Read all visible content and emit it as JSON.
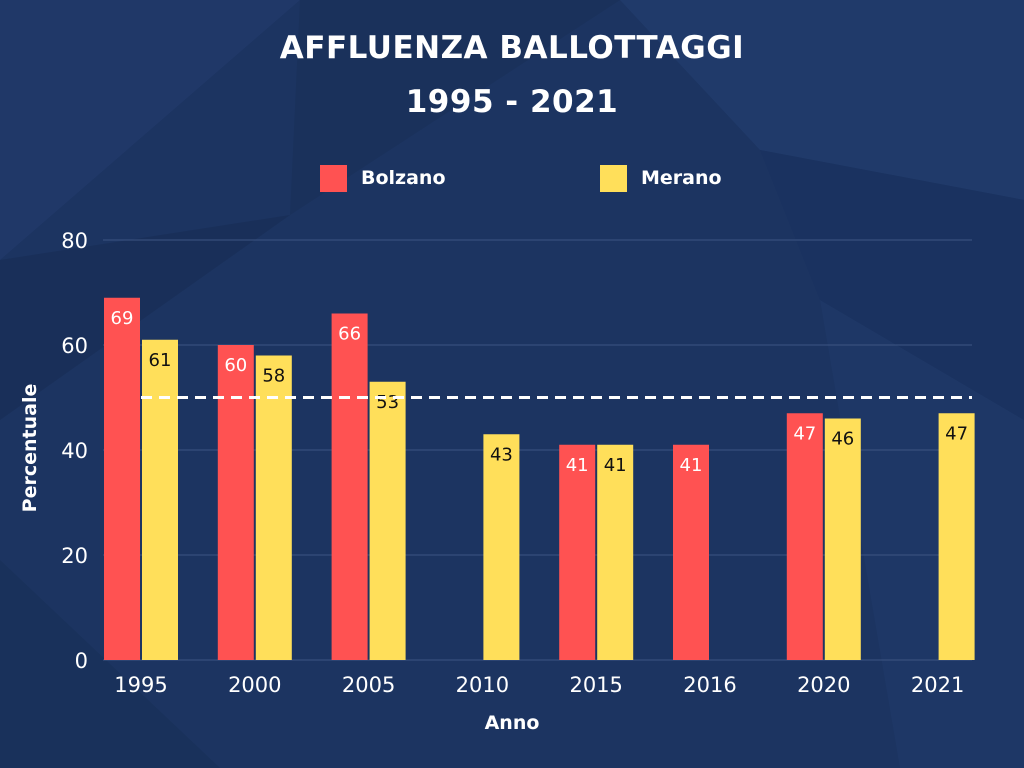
{
  "colors": {
    "background": "#1c3461",
    "bolzano": "#ff5252",
    "merano": "#ffdf5a",
    "text": "#ffffff",
    "grid": "#3d5583"
  },
  "chart_data": {
    "type": "bar",
    "title_line_1": "AFFLUENZA BALLOTTAGGI",
    "title_line_2": "1995 - 2021",
    "xlabel": "Anno",
    "ylabel": "Percentuale",
    "categories": [
      "1995",
      "2000",
      "2005",
      "2010",
      "2015",
      "2016",
      "2020",
      "2021"
    ],
    "series": [
      {
        "name": "Bolzano",
        "values": [
          69,
          60,
          66,
          null,
          41,
          41,
          47,
          null
        ]
      },
      {
        "name": "Merano",
        "values": [
          61,
          58,
          53,
          43,
          41,
          null,
          46,
          47
        ]
      }
    ],
    "ylim": [
      0,
      80
    ],
    "yticks": [
      0,
      20,
      40,
      60,
      80
    ],
    "reference_line": 50,
    "grid": true,
    "legend_position": "top"
  }
}
